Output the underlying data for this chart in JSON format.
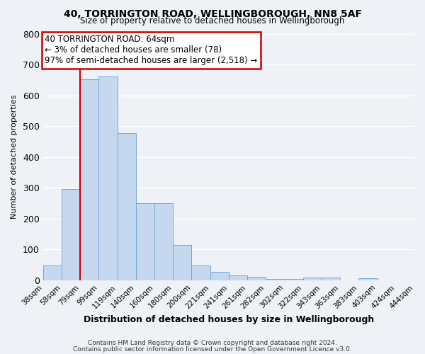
{
  "title": "40, TORRINGTON ROAD, WELLINGBOROUGH, NN8 5AF",
  "subtitle": "Size of property relative to detached houses in Wellingborough",
  "xlabel": "Distribution of detached houses by size in Wellingborough",
  "ylabel": "Number of detached properties",
  "bar_heights": [
    47,
    295,
    653,
    662,
    477,
    251,
    251,
    115,
    49,
    28,
    15,
    10,
    4,
    4,
    8,
    8,
    0,
    7,
    0,
    0
  ],
  "bin_labels": [
    "38sqm",
    "58sqm",
    "79sqm",
    "99sqm",
    "119sqm",
    "140sqm",
    "160sqm",
    "180sqm",
    "200sqm",
    "221sqm",
    "241sqm",
    "261sqm",
    "282sqm",
    "302sqm",
    "322sqm",
    "343sqm",
    "363sqm",
    "383sqm",
    "403sqm",
    "424sqm",
    "444sqm"
  ],
  "bar_color": "#c5d8ef",
  "bar_edge_color": "#6faad6",
  "bg_color": "#eef2f7",
  "grid_color": "#ffffff",
  "vline_x": 1.0,
  "vline_color": "#cc0000",
  "annotation_line1": "40 TORRINGTON ROAD: 64sqm",
  "annotation_line2": "← 3% of detached houses are smaller (78)",
  "annotation_line3": "97% of semi-detached houses are larger (2,518) →",
  "annotation_box_color": "#cc0000",
  "ylim": [
    0,
    800
  ],
  "yticks": [
    0,
    100,
    200,
    300,
    400,
    500,
    600,
    700,
    800
  ],
  "footer_line1": "Contains HM Land Registry data © Crown copyright and database right 2024.",
  "footer_line2": "Contains public sector information licensed under the Open Government Licence v3.0."
}
